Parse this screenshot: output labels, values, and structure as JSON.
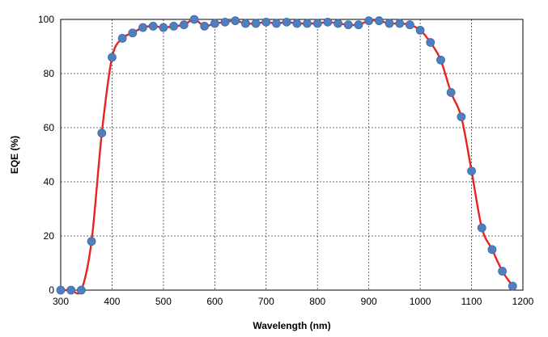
{
  "chart_data": {
    "type": "line",
    "title": "",
    "xlabel": "Wavelength (nm)",
    "ylabel": "EQE (%)",
    "xlim": [
      300,
      1200
    ],
    "ylim": [
      0,
      100
    ],
    "xticks": [
      300,
      400,
      500,
      600,
      700,
      800,
      900,
      1000,
      1100,
      1200
    ],
    "yticks": [
      0,
      20,
      40,
      60,
      80,
      100
    ],
    "grid": true,
    "legend": "none",
    "colors": {
      "line": "#e8231f",
      "marker": "#4f7fbf",
      "marker_edge": "#3d6aa5"
    },
    "series": [
      {
        "x": [
          300,
          320,
          340,
          360,
          380,
          400,
          420,
          440,
          460,
          480,
          500,
          520,
          540,
          560,
          580,
          600,
          620,
          640,
          660,
          680,
          700,
          720,
          740,
          760,
          780,
          800,
          820,
          840,
          860,
          880,
          900,
          920,
          940,
          960,
          980,
          1000,
          1020,
          1040,
          1060,
          1080,
          1100,
          1120,
          1140,
          1160,
          1180
        ],
        "y": [
          0,
          0,
          0,
          18,
          58,
          86,
          93,
          95,
          97,
          97.5,
          97,
          97.5,
          98,
          100,
          97.5,
          98.5,
          99,
          99.5,
          98.5,
          98.5,
          99,
          98.5,
          99,
          98.5,
          98.5,
          98.5,
          99,
          98.5,
          98,
          98,
          99.5,
          99.5,
          98.5,
          98.5,
          98,
          96,
          91.5,
          85,
          73,
          64,
          44,
          23,
          15,
          7,
          1.5
        ]
      }
    ]
  }
}
